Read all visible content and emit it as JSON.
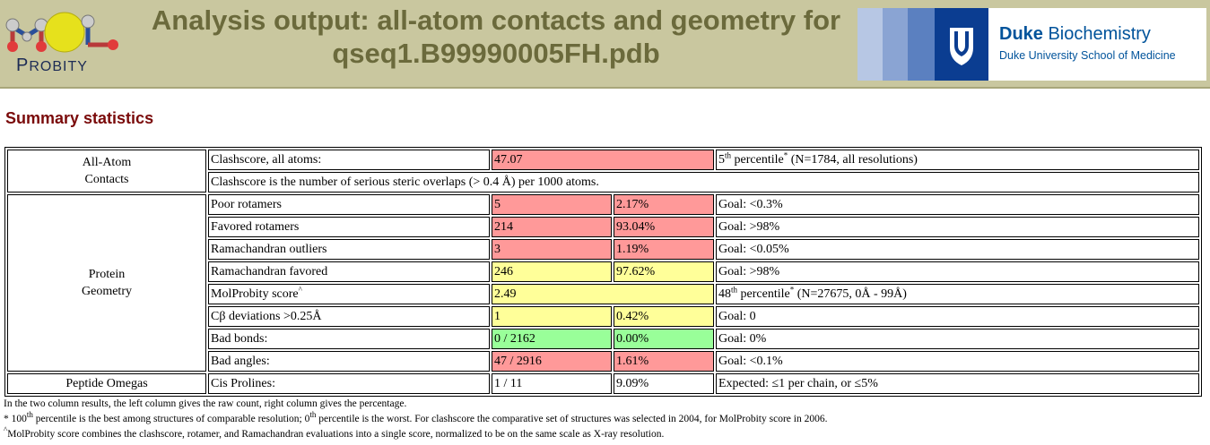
{
  "header": {
    "logo_text_first": "P",
    "logo_text_rest": "ROBITY",
    "title_line1": "Analysis output: all-atom contacts and geometry for",
    "title_line2": "qseq1.B99990005FH.pdb",
    "duke_bold": "Duke",
    "duke_rest": " Biochemistry",
    "duke_sub": "Duke University School of Medicine"
  },
  "section_title": "Summary statistics",
  "categories": {
    "contacts_line1": "All-Atom",
    "contacts_line2": "Contacts",
    "protein_line1": "Protein",
    "protein_line2": "Geometry",
    "omegas": "Peptide Omegas"
  },
  "rows": {
    "clashscore": {
      "label": "Clashscore, all atoms:",
      "value": "47.07",
      "pct_sup": "th",
      "pct_num": "5",
      "pct_word": " percentile",
      "pct_star": "*",
      "pct_rest": " (N=1784, all resolutions)"
    },
    "clash_note": "Clashscore is the number of serious steric overlaps (> 0.4 Å) per 1000 atoms.",
    "poor_rotamers": {
      "label": "Poor rotamers",
      "count": "5",
      "pct": "2.17%",
      "goal": "Goal: <0.3%"
    },
    "favored_rotamers": {
      "label": "Favored rotamers",
      "count": "214",
      "pct": "93.04%",
      "goal": "Goal: >98%"
    },
    "rama_outliers": {
      "label": "Ramachandran outliers",
      "count": "3",
      "pct": "1.19%",
      "goal": "Goal: <0.05%"
    },
    "rama_favored": {
      "label": "Ramachandran favored",
      "count": "246",
      "pct": "97.62%",
      "goal": "Goal: >98%"
    },
    "molprobity": {
      "label": "MolProbity score",
      "label_sup": "^",
      "value": "2.49",
      "pct_num": "48",
      "pct_sup": "th",
      "pct_word": " percentile",
      "pct_star": "*",
      "pct_rest": " (N=27675, 0Å - 99Å)"
    },
    "cbeta": {
      "label": "Cβ deviations >0.25Å",
      "count": "1",
      "pct": "0.42%",
      "goal": "Goal: 0"
    },
    "bad_bonds": {
      "label": "Bad bonds:",
      "count": "0 / 2162",
      "pct": "0.00%",
      "goal": "Goal: 0%"
    },
    "bad_angles": {
      "label": "Bad angles:",
      "count": "47 / 2916",
      "pct": "1.61%",
      "goal": "Goal: <0.1%"
    },
    "cis_prolines": {
      "label": "Cis Prolines:",
      "count": "1 / 11",
      "pct": "9.09%",
      "goal": "Expected: ≤1 per chain, or ≤5%"
    }
  },
  "notes": {
    "line1": "In the two column results, the left column gives the raw count, right column gives the percentage.",
    "line2_prefix": "* 100",
    "line2_sup1": "th",
    "line2_mid": " percentile is the best among structures of comparable resolution; 0",
    "line2_sup2": "th",
    "line2_rest": " percentile is the worst. For clashscore the comparative set of structures was selected in 2004, for MolProbity score in 2006.",
    "line3_caret": "^",
    "line3": "MolProbity score combines the clashscore, rotamer, and Ramachandran evaluations into a single score, normalized to be on the same scale as X-ray resolution."
  },
  "colors": {
    "bad": "#ff9999",
    "warning": "#ffff99",
    "good": "#99ff99",
    "header_bg": "#c9c79f",
    "title": "#6b6a3c",
    "duke_blue": "#00539b"
  }
}
